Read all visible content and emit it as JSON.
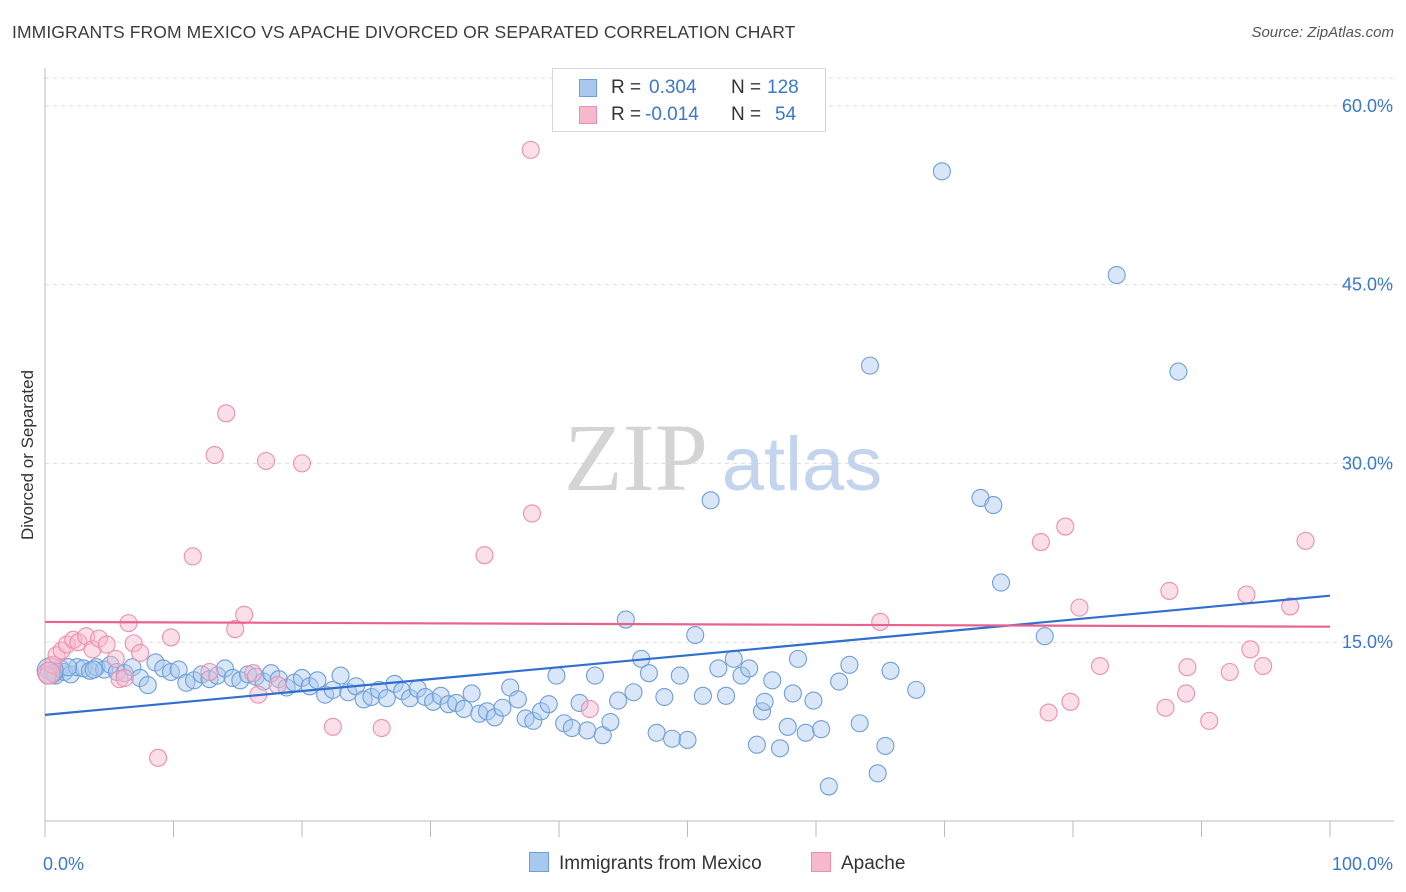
{
  "header": {
    "title": "IMMIGRANTS FROM MEXICO VS APACHE DIVORCED OR SEPARATED CORRELATION CHART",
    "source": "Source: ZipAtlas.com"
  },
  "legend": {
    "rows": [
      {
        "r_label": "R =",
        "r_value": "0.304",
        "n_label": "N =",
        "n_value": "128"
      },
      {
        "r_label": "R =",
        "r_value": "-0.014",
        "n_label": "N =",
        "n_value": "54"
      }
    ]
  },
  "watermark": {
    "zip": "ZIP",
    "atlas": "atlas"
  },
  "colors": {
    "blue_fill": "#a9c8ee",
    "blue_stroke": "#6f9fd8",
    "blue_line": "#2f6fd0",
    "pink_fill": "#f6b9cc",
    "pink_stroke": "#ec8fae",
    "pink_line": "#e8628e",
    "tick_label": "#3a78c8",
    "grid": "#dddddd"
  },
  "chart_data": {
    "type": "scatter",
    "title": "IMMIGRANTS FROM MEXICO VS APACHE DIVORCED OR SEPARATED CORRELATION CHART",
    "xlabel": "",
    "ylabel": "Divorced or Separated",
    "xlim": [
      0,
      100
    ],
    "ylim": [
      0,
      63
    ],
    "x_tick_labels": [
      "0.0%",
      "100.0%"
    ],
    "y_ticks": [
      15,
      30,
      45,
      60
    ],
    "y_tick_labels": [
      "15.0%",
      "30.0%",
      "45.0%",
      "60.0%"
    ],
    "grid": true,
    "legend_position": "bottom",
    "series": [
      {
        "name": "Immigrants from Mexico",
        "color": "#6f9fd8",
        "trend": {
          "x": [
            0,
            100
          ],
          "y": [
            8.9,
            18.9
          ]
        },
        "points": [
          [
            0.3,
            12.6
          ],
          [
            0.8,
            12.2
          ],
          [
            1.2,
            12.8
          ],
          [
            1.5,
            12.5
          ],
          [
            2.0,
            12.3
          ],
          [
            2.5,
            12.9
          ],
          [
            3.0,
            12.8
          ],
          [
            3.5,
            12.6
          ],
          [
            4.0,
            12.9
          ],
          [
            4.6,
            12.7
          ],
          [
            5.1,
            13.1
          ],
          [
            5.6,
            12.5
          ],
          [
            6.2,
            12.4
          ],
          [
            6.8,
            12.9
          ],
          [
            7.4,
            12.0
          ],
          [
            8.0,
            11.4
          ],
          [
            8.6,
            13.3
          ],
          [
            9.2,
            12.8
          ],
          [
            9.8,
            12.5
          ],
          [
            10.4,
            12.7
          ],
          [
            11.0,
            11.6
          ],
          [
            11.6,
            11.8
          ],
          [
            12.2,
            12.3
          ],
          [
            12.8,
            11.9
          ],
          [
            13.4,
            12.2
          ],
          [
            14.0,
            12.8
          ],
          [
            14.6,
            12.0
          ],
          [
            15.2,
            11.8
          ],
          [
            15.8,
            12.3
          ],
          [
            16.4,
            12.1
          ],
          [
            17.0,
            11.7
          ],
          [
            17.6,
            12.4
          ],
          [
            18.2,
            11.9
          ],
          [
            18.8,
            11.2
          ],
          [
            19.4,
            11.6
          ],
          [
            20.0,
            12.0
          ],
          [
            20.6,
            11.3
          ],
          [
            21.2,
            11.8
          ],
          [
            21.8,
            10.6
          ],
          [
            22.4,
            11.0
          ],
          [
            23.0,
            12.2
          ],
          [
            23.6,
            10.8
          ],
          [
            24.2,
            11.3
          ],
          [
            24.8,
            10.2
          ],
          [
            25.4,
            10.4
          ],
          [
            26.0,
            11.0
          ],
          [
            26.6,
            10.3
          ],
          [
            27.2,
            11.5
          ],
          [
            27.8,
            10.9
          ],
          [
            28.4,
            10.3
          ],
          [
            29.0,
            11.1
          ],
          [
            29.6,
            10.4
          ],
          [
            30.2,
            10.0
          ],
          [
            30.8,
            10.5
          ],
          [
            31.4,
            9.8
          ],
          [
            32.0,
            9.9
          ],
          [
            32.6,
            9.4
          ],
          [
            33.2,
            10.7
          ],
          [
            33.8,
            9.0
          ],
          [
            34.4,
            9.2
          ],
          [
            35.0,
            8.7
          ],
          [
            35.6,
            9.5
          ],
          [
            36.2,
            11.2
          ],
          [
            36.8,
            10.2
          ],
          [
            37.4,
            8.6
          ],
          [
            38.0,
            8.4
          ],
          [
            38.6,
            9.2
          ],
          [
            39.2,
            9.8
          ],
          [
            39.8,
            12.2
          ],
          [
            40.4,
            8.2
          ],
          [
            41.0,
            7.8
          ],
          [
            41.6,
            9.9
          ],
          [
            42.2,
            7.6
          ],
          [
            42.8,
            12.2
          ],
          [
            43.4,
            7.2
          ],
          [
            44.0,
            8.3
          ],
          [
            44.6,
            10.1
          ],
          [
            45.2,
            16.9
          ],
          [
            45.8,
            10.8
          ],
          [
            46.4,
            13.6
          ],
          [
            47.0,
            12.4
          ],
          [
            47.6,
            7.4
          ],
          [
            48.2,
            10.4
          ],
          [
            48.8,
            6.9
          ],
          [
            49.4,
            12.2
          ],
          [
            50.0,
            6.8
          ],
          [
            50.6,
            15.6
          ],
          [
            51.2,
            10.5
          ],
          [
            51.8,
            26.9
          ],
          [
            52.4,
            12.8
          ],
          [
            53.0,
            10.5
          ],
          [
            53.6,
            13.6
          ],
          [
            54.2,
            12.2
          ],
          [
            54.8,
            12.8
          ],
          [
            55.4,
            6.4
          ],
          [
            55.8,
            9.2
          ],
          [
            56.0,
            10.0
          ],
          [
            56.6,
            11.8
          ],
          [
            57.2,
            6.1
          ],
          [
            57.8,
            7.9
          ],
          [
            58.2,
            10.7
          ],
          [
            58.6,
            13.6
          ],
          [
            59.2,
            7.4
          ],
          [
            59.8,
            10.1
          ],
          [
            60.4,
            7.7
          ],
          [
            61.0,
            2.9
          ],
          [
            61.8,
            11.7
          ],
          [
            62.6,
            13.1
          ],
          [
            63.4,
            8.2
          ],
          [
            64.2,
            38.2
          ],
          [
            64.8,
            4.0
          ],
          [
            65.4,
            6.3
          ],
          [
            65.8,
            12.6
          ],
          [
            67.8,
            11.0
          ],
          [
            69.8,
            54.5
          ],
          [
            72.8,
            27.1
          ],
          [
            73.8,
            26.5
          ],
          [
            74.4,
            20.0
          ],
          [
            77.8,
            15.5
          ],
          [
            83.4,
            45.8
          ],
          [
            88.2,
            37.7
          ],
          [
            0.6,
            12.4
          ],
          [
            1.8,
            12.9
          ],
          [
            3.8,
            12.7
          ]
        ]
      },
      {
        "name": "Apache",
        "color": "#ec8fae",
        "trend": {
          "x": [
            0,
            100
          ],
          "y": [
            16.7,
            16.3
          ]
        },
        "points": [
          [
            0.2,
            12.2
          ],
          [
            0.6,
            13.1
          ],
          [
            0.9,
            13.9
          ],
          [
            1.3,
            14.3
          ],
          [
            1.7,
            14.8
          ],
          [
            2.2,
            15.2
          ],
          [
            2.6,
            15.0
          ],
          [
            3.2,
            15.5
          ],
          [
            3.7,
            14.4
          ],
          [
            4.2,
            15.3
          ],
          [
            4.8,
            14.8
          ],
          [
            5.5,
            13.6
          ],
          [
            5.8,
            11.9
          ],
          [
            6.2,
            12.0
          ],
          [
            6.5,
            16.6
          ],
          [
            6.9,
            14.9
          ],
          [
            7.4,
            14.1
          ],
          [
            8.8,
            5.3
          ],
          [
            9.8,
            15.4
          ],
          [
            11.5,
            22.2
          ],
          [
            12.8,
            12.5
          ],
          [
            13.2,
            30.7
          ],
          [
            14.1,
            34.2
          ],
          [
            14.8,
            16.1
          ],
          [
            15.5,
            17.3
          ],
          [
            16.2,
            12.4
          ],
          [
            16.6,
            10.6
          ],
          [
            17.2,
            30.2
          ],
          [
            18.1,
            11.4
          ],
          [
            20.0,
            30.0
          ],
          [
            22.4,
            7.9
          ],
          [
            26.2,
            7.8
          ],
          [
            34.2,
            22.3
          ],
          [
            37.8,
            56.3
          ],
          [
            37.9,
            25.8
          ],
          [
            42.4,
            9.4
          ],
          [
            65.0,
            16.7
          ],
          [
            77.5,
            23.4
          ],
          [
            78.1,
            9.1
          ],
          [
            79.4,
            24.7
          ],
          [
            79.8,
            10.0
          ],
          [
            80.5,
            17.9
          ],
          [
            82.1,
            13.0
          ],
          [
            87.2,
            9.5
          ],
          [
            87.5,
            19.3
          ],
          [
            88.8,
            10.7
          ],
          [
            88.9,
            12.9
          ],
          [
            90.6,
            8.4
          ],
          [
            92.2,
            12.5
          ],
          [
            93.5,
            19.0
          ],
          [
            93.8,
            14.4
          ],
          [
            94.8,
            13.0
          ],
          [
            96.9,
            18.0
          ],
          [
            98.1,
            23.5
          ]
        ]
      }
    ]
  },
  "bottom_legend": {
    "items": [
      "Immigrants from Mexico",
      "Apache"
    ]
  }
}
